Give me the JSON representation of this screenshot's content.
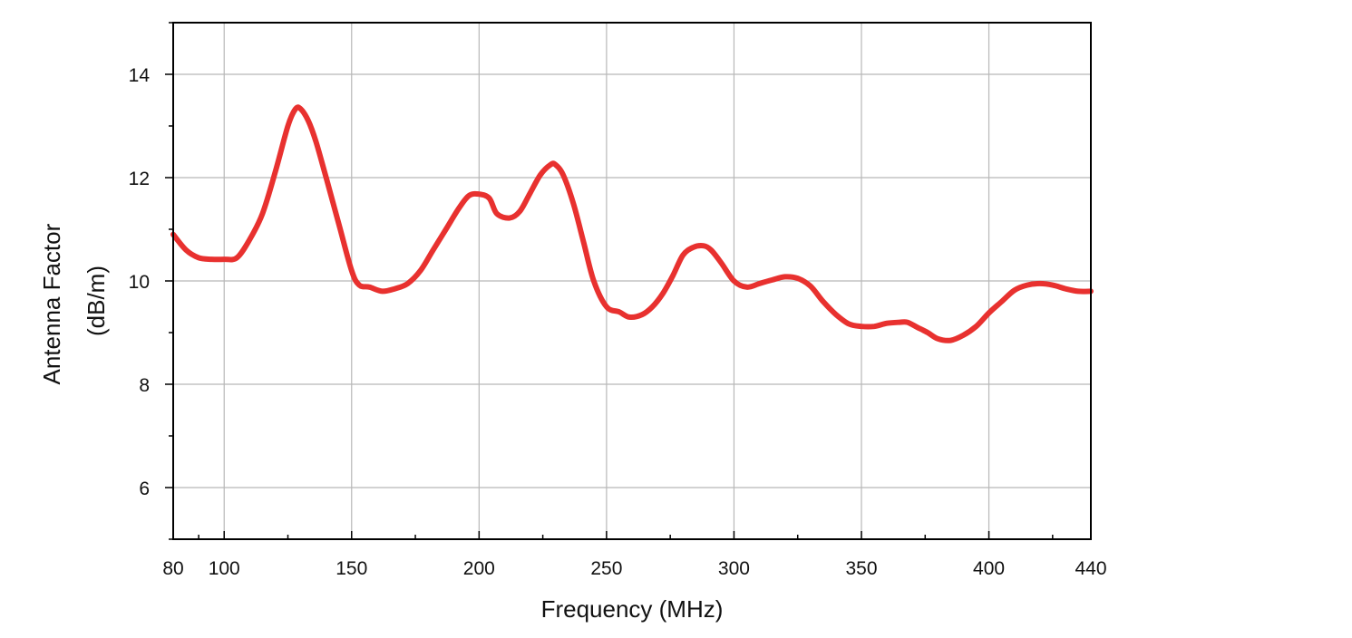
{
  "chart_data": {
    "type": "line",
    "xlabel": "Frequency (MHz)",
    "ylabel_lines": [
      "Antenna Factor",
      "(dB/m)"
    ],
    "xlim": [
      80,
      440
    ],
    "ylim": [
      5,
      15
    ],
    "x_ticks": [
      80,
      100,
      150,
      200,
      250,
      300,
      350,
      400,
      440
    ],
    "x_minor_ticks": [
      90,
      125,
      175,
      225,
      275,
      325,
      375,
      425
    ],
    "x_grid": [
      100,
      150,
      200,
      250,
      300,
      350,
      400
    ],
    "y_ticks": [
      6,
      8,
      10,
      12,
      14
    ],
    "y_minor_ticks": [
      5,
      7,
      9,
      11,
      13,
      15
    ],
    "y_grid": [
      6,
      8,
      10,
      12,
      14
    ],
    "grid": true,
    "legend": "none",
    "series": [
      {
        "color": "#e8312f",
        "x": [
          80,
          85,
          90,
          95,
          100,
          105,
          110,
          115,
          120,
          125,
          128,
          130,
          133,
          136,
          140,
          145,
          150,
          153,
          157,
          162,
          167,
          172,
          177,
          182,
          187,
          192,
          196,
          200,
          204,
          207,
          212,
          216,
          220,
          224,
          228,
          230,
          233,
          237,
          241,
          245,
          250,
          255,
          259,
          264,
          268,
          272,
          276,
          280,
          284,
          288,
          291,
          295,
          300,
          305,
          310,
          315,
          320,
          325,
          330,
          335,
          340,
          345,
          350,
          355,
          360,
          365,
          368,
          372,
          376,
          380,
          385,
          390,
          395,
          400,
          405,
          410,
          415,
          420,
          425,
          430,
          435,
          440
        ],
        "y": [
          10.9,
          10.6,
          10.45,
          10.42,
          10.42,
          10.45,
          10.8,
          11.3,
          12.1,
          13.0,
          13.33,
          13.33,
          13.1,
          12.7,
          12.0,
          11.1,
          10.2,
          9.92,
          9.88,
          9.8,
          9.85,
          9.95,
          10.2,
          10.6,
          11.0,
          11.4,
          11.65,
          11.68,
          11.6,
          11.3,
          11.22,
          11.35,
          11.7,
          12.05,
          12.25,
          12.25,
          12.05,
          11.5,
          10.75,
          10.0,
          9.5,
          9.4,
          9.3,
          9.35,
          9.5,
          9.75,
          10.1,
          10.5,
          10.65,
          10.68,
          10.6,
          10.35,
          10.0,
          9.88,
          9.95,
          10.02,
          10.08,
          10.05,
          9.9,
          9.6,
          9.35,
          9.17,
          9.12,
          9.12,
          9.18,
          9.2,
          9.2,
          9.1,
          9.0,
          8.88,
          8.85,
          8.95,
          9.12,
          9.38,
          9.6,
          9.82,
          9.92,
          9.95,
          9.92,
          9.85,
          9.8,
          9.8
        ]
      }
    ]
  }
}
